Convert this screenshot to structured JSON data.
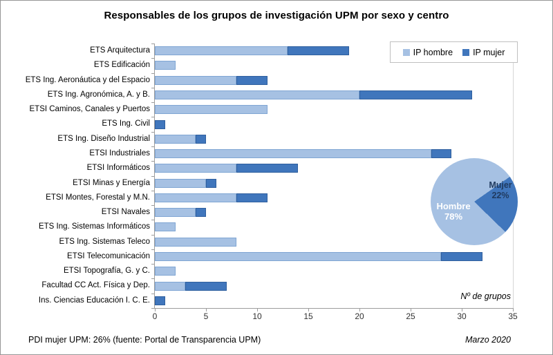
{
  "title": "Responsables de los grupos de investigación UPM por sexo y centro",
  "legend": {
    "items": [
      {
        "label": "IP hombre",
        "color": "#A6C1E3"
      },
      {
        "label": "IP mujer",
        "color": "#4076BC"
      }
    ]
  },
  "chart_data": [
    {
      "type": "bar",
      "orientation": "horizontal",
      "stacked": true,
      "title": "Responsables de los grupos de investigación UPM por sexo y centro",
      "xlabel": "Nº de grupos",
      "xlim": [
        0,
        35
      ],
      "xticks": [
        0,
        5,
        10,
        15,
        20,
        25,
        30,
        35
      ],
      "grid": false,
      "legend_position": "top-right",
      "categories": [
        "ETS Arquitectura",
        "ETS Edificación",
        "ETS Ing. Aeronáutica y del Espacio",
        "ETS Ing. Agronómica, A. y B.",
        "ETSI Caminos, Canales y Puertos",
        "ETS Ing. Civil",
        "ETS Ing. Diseño Industrial",
        "ETSI Industriales",
        "ETSI Informáticos",
        "ETSI Minas y Energía",
        "ETSI Montes, Forestal y M.N.",
        "ETSI Navales",
        "ETS Ing. Sistemas Informáticos",
        "ETS Ing. Sistemas Teleco",
        "ETSI Telecomunicación",
        "ETSI Topografía, G. y C.",
        "Facultad CC Act. Física y Dep.",
        "Ins. Ciencias Educación  I. C. E."
      ],
      "series": [
        {
          "name": "IP hombre",
          "color": "#A6C1E3",
          "border_color": "#7FA5D3",
          "values": [
            13,
            2,
            8,
            20,
            11,
            0,
            4,
            27,
            8,
            5,
            8,
            4,
            2,
            8,
            28,
            2,
            3,
            0
          ]
        },
        {
          "name": "IP mujer",
          "color": "#4076BC",
          "border_color": "#2F5F9E",
          "values": [
            6,
            0,
            3,
            11,
            0,
            1,
            1,
            2,
            6,
            1,
            3,
            1,
            0,
            0,
            4,
            0,
            4,
            1
          ]
        }
      ]
    },
    {
      "type": "pie",
      "labels": [
        "Hombre",
        "Mujer"
      ],
      "values": [
        78,
        22
      ],
      "unit": "%",
      "colors": [
        "#A6C1E3",
        "#4076BC"
      ],
      "rotation_deg": 55,
      "label_texts": {
        "hombre": "Hombre",
        "hombre_pct": "78%",
        "mujer": "Mujer",
        "mujer_pct": "22%"
      }
    }
  ],
  "footer": {
    "left": "PDI mujer UPM: 26% (fuente: Portal de Transparencia UPM)",
    "right": "Marzo 2020"
  }
}
